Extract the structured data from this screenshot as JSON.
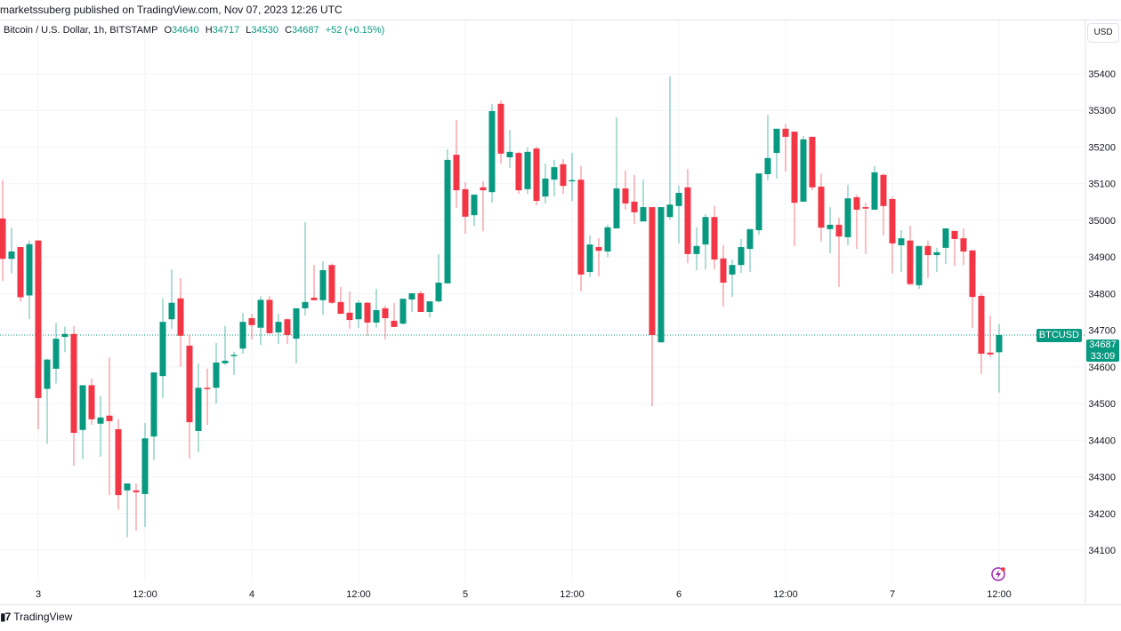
{
  "header": {
    "published": "marketssuberg published on TradingView.com, Nov 07, 2023 12:26 UTC"
  },
  "legend": {
    "symbol": "Bitcoin / U.S. Dollar, 1h, BITSTAMP",
    "o_label": "O",
    "o": "34640",
    "h_label": "H",
    "h": "34717",
    "l_label": "L",
    "l": "34530",
    "c_label": "C",
    "c": "34687",
    "change": "+52 (+0.15%)"
  },
  "currency_button": "USD",
  "last_price": {
    "symbol_tag": "BTCUSD",
    "price": "34687",
    "countdown": "33:09"
  },
  "footer": {
    "brand": "TradingView"
  },
  "icons": {
    "event": "lightning-icon",
    "logo": "tradingview-logo"
  },
  "colors": {
    "up": "#089981",
    "down": "#f23645",
    "event": "#9c27b0"
  },
  "chart_data": {
    "type": "candlestick",
    "interval": "1h",
    "grid": true,
    "y_ticks": [
      35400,
      35300,
      35200,
      35100,
      35000,
      34900,
      34800,
      34700,
      34600,
      34500,
      34400,
      34300,
      34200,
      34100
    ],
    "ylim": [
      34060,
      35440
    ],
    "x_ticks": [
      {
        "label": "3",
        "time": "2023-11-03 00:00"
      },
      {
        "label": "12:00",
        "time": "2023-11-03 12:00"
      },
      {
        "label": "4",
        "time": "2023-11-04 00:00"
      },
      {
        "label": "12:00",
        "time": "2023-11-04 12:00"
      },
      {
        "label": "5",
        "time": "2023-11-05 00:00"
      },
      {
        "label": "12:00",
        "time": "2023-11-05 12:00"
      },
      {
        "label": "6",
        "time": "2023-11-06 00:00"
      },
      {
        "label": "12:00",
        "time": "2023-11-06 12:00"
      },
      {
        "label": "7",
        "time": "2023-11-07 00:00"
      },
      {
        "label": "12:00",
        "time": "2023-11-07 12:00"
      }
    ],
    "last_price_line": 34687,
    "columns": [
      "time",
      "open",
      "high",
      "low",
      "close"
    ],
    "candles": [
      [
        "2023-11-02 20:00",
        35005,
        35110,
        34835,
        34895
      ],
      [
        "2023-11-02 21:00",
        34895,
        34980,
        34855,
        34915
      ],
      [
        "2023-11-02 22:00",
        34927,
        34927,
        34778,
        34790
      ],
      [
        "2023-11-02 23:00",
        34795,
        34945,
        34730,
        34935
      ],
      [
        "2023-11-03 00:00",
        34945,
        34945,
        34430,
        34515
      ],
      [
        "2023-11-03 01:00",
        34540,
        34622,
        34390,
        34620
      ],
      [
        "2023-11-03 02:00",
        34595,
        34720,
        34555,
        34677
      ],
      [
        "2023-11-03 03:00",
        34682,
        34710,
        34640,
        34690
      ],
      [
        "2023-11-03 04:00",
        34690,
        34712,
        34330,
        34420
      ],
      [
        "2023-11-03 05:00",
        34428,
        34550,
        34348,
        34550
      ],
      [
        "2023-11-03 06:00",
        34550,
        34568,
        34442,
        34457
      ],
      [
        "2023-11-03 07:00",
        34445,
        34520,
        34355,
        34462
      ],
      [
        "2023-11-03 08:00",
        34467,
        34626,
        34250,
        34452
      ],
      [
        "2023-11-03 09:00",
        34430,
        34457,
        34210,
        34250
      ],
      [
        "2023-11-03 10:00",
        34263,
        34282,
        34135,
        34282
      ],
      [
        "2023-11-03 11:00",
        34263,
        34282,
        34153,
        34258
      ],
      [
        "2023-11-03 12:00",
        34253,
        34447,
        34163,
        34405
      ],
      [
        "2023-11-03 13:00",
        34410,
        34585,
        34345,
        34585
      ],
      [
        "2023-11-03 14:00",
        34575,
        34787,
        34515,
        34723
      ],
      [
        "2023-11-03 15:00",
        34730,
        34866,
        34704,
        34775
      ],
      [
        "2023-11-03 16:00",
        34787,
        34842,
        34600,
        34685
      ],
      [
        "2023-11-03 17:00",
        34658,
        34687,
        34350,
        34449
      ],
      [
        "2023-11-03 18:00",
        34425,
        34610,
        34367,
        34543
      ],
      [
        "2023-11-03 19:00",
        34543,
        34595,
        34442,
        34540
      ],
      [
        "2023-11-03 20:00",
        34543,
        34665,
        34500,
        34612
      ],
      [
        "2023-11-03 21:00",
        34610,
        34712,
        34605,
        34617
      ],
      [
        "2023-11-03 22:00",
        34630,
        34641,
        34578,
        34633
      ],
      [
        "2023-11-03 23:00",
        34650,
        34747,
        34636,
        34723
      ],
      [
        "2023-11-04 00:00",
        34733,
        34745,
        34675,
        34714
      ],
      [
        "2023-11-04 01:00",
        34707,
        34793,
        34660,
        34783
      ],
      [
        "2023-11-04 02:00",
        34783,
        34793,
        34690,
        34692
      ],
      [
        "2023-11-04 03:00",
        34694,
        34745,
        34663,
        34723
      ],
      [
        "2023-11-04 04:00",
        34730,
        34732,
        34663,
        34687
      ],
      [
        "2023-11-04 05:00",
        34677,
        34760,
        34610,
        34760
      ],
      [
        "2023-11-04 06:00",
        34760,
        34995,
        34740,
        34777
      ],
      [
        "2023-11-04 07:00",
        34789,
        34878,
        34782,
        34782
      ],
      [
        "2023-11-04 08:00",
        34782,
        34888,
        34742,
        34864
      ],
      [
        "2023-11-04 09:00",
        34878,
        34882,
        34772,
        34775
      ],
      [
        "2023-11-04 10:00",
        34777,
        34818,
        34745,
        34745
      ],
      [
        "2023-11-04 11:00",
        34748,
        34806,
        34704,
        34728
      ],
      [
        "2023-11-04 12:00",
        34730,
        34782,
        34707,
        34775
      ],
      [
        "2023-11-04 13:00",
        34775,
        34777,
        34685,
        34721
      ],
      [
        "2023-11-04 14:00",
        34721,
        34813,
        34707,
        34755
      ],
      [
        "2023-11-04 15:00",
        34760,
        34767,
        34675,
        34733
      ],
      [
        "2023-11-04 16:00",
        34726,
        34775,
        34709,
        34709
      ],
      [
        "2023-11-04 17:00",
        34718,
        34786,
        34716,
        34786
      ],
      [
        "2023-11-04 18:00",
        34784,
        34801,
        34750,
        34801
      ],
      [
        "2023-11-04 19:00",
        34801,
        34808,
        34750,
        34750
      ],
      [
        "2023-11-04 20:00",
        34750,
        34779,
        34735,
        34779
      ],
      [
        "2023-11-04 21:00",
        34779,
        34908,
        34775,
        34830
      ],
      [
        "2023-11-04 22:00",
        34828,
        35194,
        34828,
        35165
      ],
      [
        "2023-11-04 23:00",
        35179,
        35274,
        35034,
        35082
      ],
      [
        "2023-11-05 00:00",
        35085,
        35104,
        34963,
        35010
      ],
      [
        "2023-11-05 01:00",
        35014,
        35070,
        34985,
        35070
      ],
      [
        "2023-11-05 02:00",
        35090,
        35107,
        34970,
        35082
      ],
      [
        "2023-11-05 03:00",
        35077,
        35318,
        35048,
        35298
      ],
      [
        "2023-11-05 04:00",
        35318,
        35327,
        35155,
        35182
      ],
      [
        "2023-11-05 05:00",
        35172,
        35247,
        35143,
        35187
      ],
      [
        "2023-11-05 06:00",
        35184,
        35187,
        35072,
        35082
      ],
      [
        "2023-11-05 07:00",
        35085,
        35199,
        35072,
        35187
      ],
      [
        "2023-11-05 08:00",
        35196,
        35201,
        35041,
        35053
      ],
      [
        "2023-11-05 09:00",
        35065,
        35155,
        35046,
        35114
      ],
      [
        "2023-11-05 10:00",
        35111,
        35165,
        35065,
        35145
      ],
      [
        "2023-11-05 11:00",
        35153,
        35167,
        35072,
        35094
      ],
      [
        "2023-11-05 12:00",
        35107,
        35184,
        35053,
        35110
      ],
      [
        "2023-11-05 13:00",
        35111,
        35148,
        34806,
        34852
      ],
      [
        "2023-11-05 14:00",
        34859,
        34959,
        34845,
        34934
      ],
      [
        "2023-11-05 15:00",
        34927,
        34952,
        34847,
        34917
      ],
      [
        "2023-11-05 16:00",
        34915,
        34988,
        34900,
        34981
      ],
      [
        "2023-11-05 17:00",
        34978,
        35281,
        34978,
        35087
      ],
      [
        "2023-11-05 18:00",
        35087,
        35136,
        35029,
        35046
      ],
      [
        "2023-11-05 19:00",
        35051,
        35124,
        34990,
        35022
      ],
      [
        "2023-11-05 20:00",
        34997,
        35111,
        34997,
        35036
      ],
      [
        "2023-11-05 21:00",
        35036,
        35036,
        34493,
        34687
      ],
      [
        "2023-11-05 22:00",
        34667,
        35036,
        34667,
        35036
      ],
      [
        "2023-11-05 23:00",
        35009,
        35393,
        35002,
        35043
      ],
      [
        "2023-11-06 00:00",
        35039,
        35094,
        34937,
        35075
      ],
      [
        "2023-11-06 01:00",
        35090,
        35140,
        34883,
        34908
      ],
      [
        "2023-11-06 02:00",
        34908,
        34981,
        34864,
        34930
      ],
      [
        "2023-11-06 03:00",
        34934,
        35017,
        34866,
        35009
      ],
      [
        "2023-11-06 04:00",
        35009,
        35039,
        34866,
        34893
      ],
      [
        "2023-11-06 05:00",
        34896,
        34932,
        34765,
        34830
      ],
      [
        "2023-11-06 06:00",
        34852,
        34893,
        34791,
        34878
      ],
      [
        "2023-11-06 07:00",
        34878,
        34949,
        34856,
        34927
      ],
      [
        "2023-11-06 08:00",
        34922,
        34976,
        34859,
        34976
      ],
      [
        "2023-11-06 09:00",
        34973,
        35128,
        34961,
        35128
      ],
      [
        "2023-11-06 10:00",
        35126,
        35288,
        35109,
        35170
      ],
      [
        "2023-11-06 11:00",
        35184,
        35250,
        35114,
        35250
      ],
      [
        "2023-11-06 12:00",
        35250,
        35262,
        35133,
        35228
      ],
      [
        "2023-11-06 13:00",
        35242,
        35242,
        34930,
        35048
      ],
      [
        "2023-11-06 14:00",
        35051,
        35230,
        35051,
        35221
      ],
      [
        "2023-11-06 15:00",
        35228,
        35228,
        35082,
        35090
      ],
      [
        "2023-11-06 16:00",
        35092,
        35128,
        34942,
        34980
      ],
      [
        "2023-11-06 17:00",
        34976,
        35036,
        34910,
        34988
      ],
      [
        "2023-11-06 18:00",
        34988,
        35007,
        34818,
        34956
      ],
      [
        "2023-11-06 19:00",
        34954,
        35097,
        34932,
        35060
      ],
      [
        "2023-11-06 20:00",
        35063,
        35070,
        34922,
        35029
      ],
      [
        "2023-11-06 21:00",
        35036,
        35048,
        34908,
        35032
      ],
      [
        "2023-11-06 22:00",
        35029,
        35148,
        35029,
        35131
      ],
      [
        "2023-11-06 23:00",
        35124,
        35128,
        34959,
        35039
      ],
      [
        "2023-11-07 00:00",
        35058,
        35065,
        34855,
        34937
      ],
      [
        "2023-11-07 01:00",
        34932,
        34973,
        34859,
        34951
      ],
      [
        "2023-11-07 02:00",
        34945,
        34985,
        34822,
        34826
      ],
      [
        "2023-11-07 03:00",
        34823,
        34930,
        34813,
        34930
      ],
      [
        "2023-11-07 04:00",
        34930,
        34945,
        34842,
        34905
      ],
      [
        "2023-11-07 05:00",
        34905,
        34925,
        34859,
        34913
      ],
      [
        "2023-11-07 06:00",
        34925,
        34978,
        34881,
        34978
      ],
      [
        "2023-11-07 07:00",
        34971,
        34971,
        34876,
        34949
      ],
      [
        "2023-11-07 08:00",
        34951,
        34978,
        34878,
        34915
      ],
      [
        "2023-11-07 09:00",
        34918,
        34918,
        34707,
        34791
      ],
      [
        "2023-11-07 10:00",
        34794,
        34801,
        34580,
        34636
      ],
      [
        "2023-11-07 11:00",
        34639,
        34740,
        34626,
        34634
      ],
      [
        "2023-11-07 12:00",
        34640,
        34717,
        34530,
        34687
      ]
    ]
  }
}
